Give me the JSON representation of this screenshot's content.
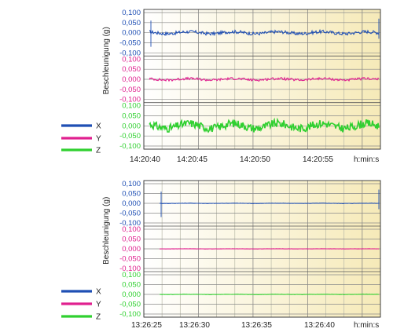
{
  "chart_data": [
    {
      "type": "line",
      "ylabel": "Beschleunigung (g)",
      "xlabel": "h:min:s",
      "x_tick_labels": [
        "14:20:40",
        "14:20:45",
        "14:20:50",
        "14:20:55"
      ],
      "x_axis_unit_label": "h:min:s",
      "grid": true,
      "legend_position": "left",
      "subplots": [
        {
          "series": "X",
          "color": "#1f4fb4",
          "tick_labels": [
            "0,100",
            "0,050",
            "0,000",
            "-0,050",
            "-0,100"
          ],
          "ylim": [
            -0.1,
            0.1
          ],
          "level": 0.0,
          "noise": 0.008
        },
        {
          "series": "Y",
          "color": "#e0208f",
          "tick_labels": [
            "0,100",
            "0,050",
            "0,000",
            "-0,050",
            "-0,100"
          ],
          "ylim": [
            -0.1,
            0.1
          ],
          "level": 0.0,
          "noise": 0.006
        },
        {
          "series": "Z",
          "color": "#30d030",
          "tick_labels": [
            "0,100",
            "0,050",
            "0,000",
            "-0,050",
            "-0,100"
          ],
          "ylim": [
            -0.1,
            0.1
          ],
          "level": 0.0,
          "noise": 0.02
        }
      ],
      "legend": [
        {
          "name": "X",
          "color": "#1f4fb4"
        },
        {
          "name": "Y",
          "color": "#e0208f"
        },
        {
          "name": "Z",
          "color": "#30d030"
        }
      ]
    },
    {
      "type": "line",
      "ylabel": "Beschleunigung (g)",
      "xlabel": "h:min:s",
      "x_tick_labels": [
        "13:26:25",
        "13:26:30",
        "13:26:35",
        "13:26:40"
      ],
      "x_axis_unit_label": "h:min:s",
      "grid": true,
      "legend_position": "left",
      "subplots": [
        {
          "series": "X",
          "color": "#1f4fb4",
          "tick_labels": [
            "0,100",
            "0,050",
            "0,000",
            "-0,050",
            "-0,100"
          ],
          "ylim": [
            -0.1,
            0.1
          ],
          "level": 0.0,
          "noise": 0.001
        },
        {
          "series": "Y",
          "color": "#e0208f",
          "tick_labels": [
            "0,100",
            "0,050",
            "0,000",
            "-0,050",
            "-0,100"
          ],
          "ylim": [
            -0.1,
            0.1
          ],
          "level": 0.0,
          "noise": 0.0005
        },
        {
          "series": "Z",
          "color": "#30d030",
          "tick_labels": [
            "0,100",
            "0,050",
            "0,000",
            "-0,050",
            "-0,100"
          ],
          "ylim": [
            -0.1,
            0.1
          ],
          "level": 0.0,
          "noise": 0.0008
        }
      ],
      "legend": [
        {
          "name": "X",
          "color": "#1f4fb4"
        },
        {
          "name": "Y",
          "color": "#e0208f"
        },
        {
          "name": "Z",
          "color": "#30d030"
        }
      ]
    }
  ]
}
